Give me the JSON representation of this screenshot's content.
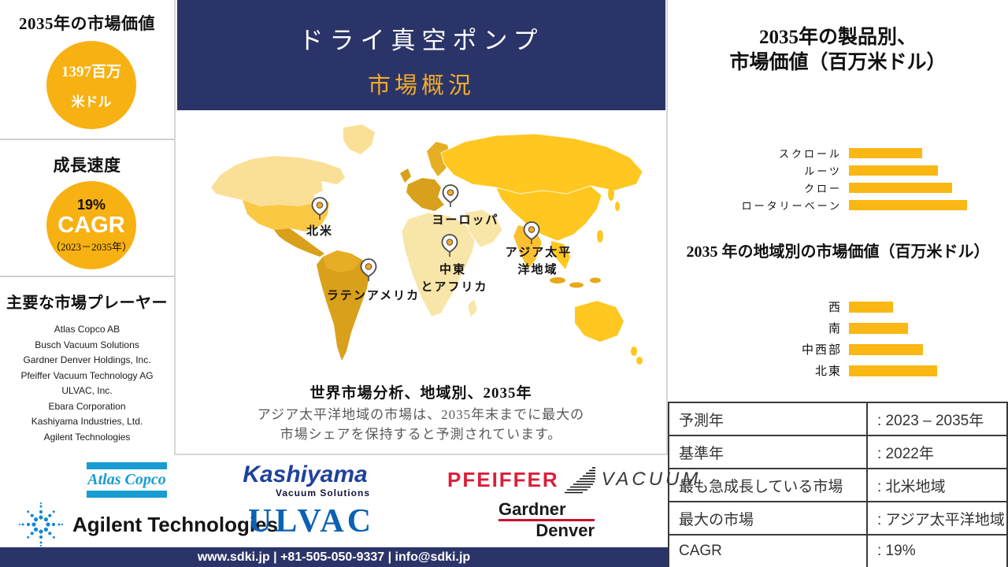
{
  "sidebar": {
    "market_value": {
      "title": "2035年の市場価値",
      "value_line1": "1397百万",
      "value_line2": "米ドル"
    },
    "growth": {
      "title": "成長速度",
      "percent": "19%",
      "cagr_label": "CAGR",
      "period": "（2023－2035年）"
    },
    "players": {
      "title": "主要な市場プレーヤー",
      "items": [
        "Atlas Copco AB",
        "Busch Vacuum Solutions",
        "Gardner Denver Holdings, Inc.",
        "Pfeiffer Vacuum Technology AG",
        "ULVAC, Inc.",
        "Ebara Corporation",
        "Kashiyama Industries, Ltd.",
        "Agilent Technologies"
      ]
    }
  },
  "banner": {
    "title_line1": "ドライ真空ポンプ",
    "title_line2": "市場概況"
  },
  "map": {
    "pins": {
      "north_america": "北米",
      "europe": "ヨーロッパ",
      "mea_line1": "中東",
      "mea_line2": "とアフリカ",
      "apac_line1": "アジア太平",
      "apac_line2": "洋地域",
      "latam": "ラテンアメリカ"
    },
    "caption_title": "世界市場分析、地域別、2035年",
    "caption_line1": "アジア太平洋地域の市場は、2035年末までに最大の",
    "caption_line2": "市場シェアを保持すると予測されています。"
  },
  "chart_data": [
    {
      "type": "bar",
      "orientation": "horizontal",
      "title": "2035年の製品別、市場価値（百万米ドル）",
      "title_line1": "2035年の製品別、",
      "title_line2": "市場価値（百万米ドル）",
      "categories": [
        "スクロール",
        "ルーツ",
        "クロー",
        "ロータリーベーン"
      ],
      "values": [
        62,
        75,
        87,
        100
      ],
      "value_units": "relative percent of longest bar (no numeric axis shown)",
      "bar_color": "#FBB713",
      "grid": false,
      "legend": false
    },
    {
      "type": "bar",
      "orientation": "horizontal",
      "title": "2035 年の地域別の市場価値（百万米ドル）",
      "categories": [
        "西",
        "南",
        "中西部",
        "北東"
      ],
      "values": [
        50,
        67,
        84,
        100
      ],
      "value_units": "relative percent of longest bar (no numeric axis shown)",
      "bar_color": "#FBB713",
      "grid": false,
      "legend": false
    }
  ],
  "table": {
    "rows": [
      {
        "label": "予測年",
        "value": ": 2023 – 2035年"
      },
      {
        "label": "基準年",
        "value": ": 2022年"
      },
      {
        "label": "最も急成長している市場",
        "value": ": 北米地域"
      },
      {
        "label": "最大の市場",
        "value": ": アジア太平洋地域"
      },
      {
        "label": "CAGR",
        "value": ": 19%"
      }
    ]
  },
  "logos": {
    "atlas": {
      "text": "Atlas Copco",
      "color": "#189CD1"
    },
    "kashiyama": {
      "line1": "Kashiyama",
      "line2": "Vacuum Solutions",
      "color": "#1E429B"
    },
    "pfeiffer": {
      "word1": "PFEIFFER",
      "word2": "VACUUM",
      "red": "#DC1E3A"
    },
    "agilent": {
      "text": "Agilent Technologies",
      "blue": "#1387D8"
    },
    "ulvac": {
      "text": "ULVAC",
      "blue": "#0B62B2"
    },
    "gardner": {
      "line1": "Gardner",
      "line2": "Denver",
      "red": "#C8102E"
    }
  },
  "footer": {
    "contact": "www.sdki.jp | +81-505-050-9337 | info@sdki.jp"
  },
  "icons": {
    "map_pin": "location-pin"
  },
  "colors": {
    "navy": "#2B3468",
    "amber_circle": "#F8B112",
    "amber_bar": "#FBB713",
    "banner_title2": "#F0AC28",
    "caption_gray": "#595959",
    "map_cream": "#FAE096",
    "map_pale": "#F8E5A8",
    "map_gold": "#FBC844",
    "map_deep": "#D9A01B",
    "map_mid": "#E6AE24",
    "map_bright": "#FFC71F"
  }
}
